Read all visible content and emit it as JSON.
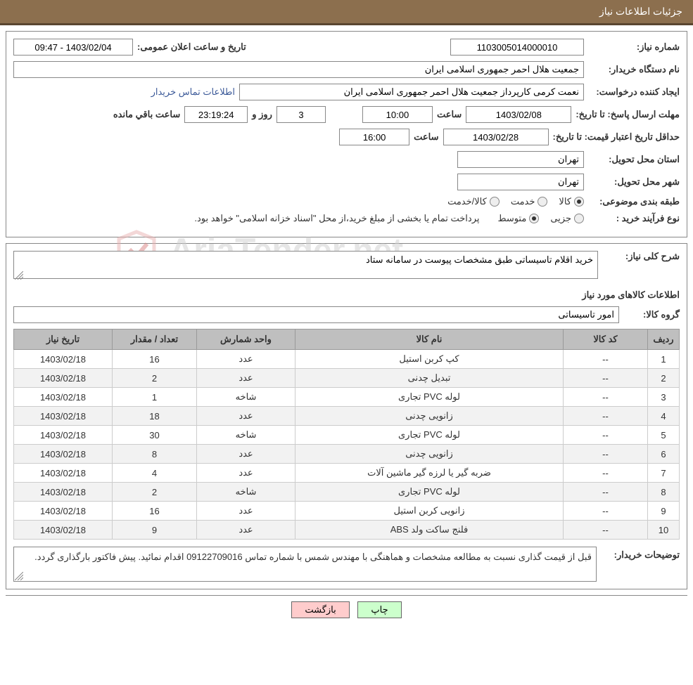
{
  "header": {
    "title": "جزئیات اطلاعات نیاز"
  },
  "fields": {
    "need_number_label": "شماره نیاز:",
    "need_number": "1103005014000010",
    "announce_datetime_label": "تاریخ و ساعت اعلان عمومی:",
    "announce_datetime": "1403/02/04 - 09:47",
    "buyer_org_label": "نام دستگاه خریدار:",
    "buyer_org": "جمعیت هلال احمر جمهوری اسلامی ایران",
    "requester_label": "ایجاد کننده درخواست:",
    "requester": "نعمت کرمی کارپرداز جمعیت هلال احمر جمهوری اسلامی ایران",
    "contact_link": "اطلاعات تماس خریدار",
    "deadline_label": "مهلت ارسال پاسخ:",
    "to_date_label": "تا تاریخ:",
    "deadline_date": "1403/02/08",
    "time_label": "ساعت",
    "deadline_time": "10:00",
    "days_value": "3",
    "days_and_label": "روز و",
    "countdown": "23:19:24",
    "remaining_label": "ساعت باقي مانده",
    "price_validity_label": "حداقل تاریخ اعتبار قیمت:",
    "price_validity_date": "1403/02/28",
    "price_validity_time": "16:00",
    "delivery_province_label": "استان محل تحویل:",
    "delivery_province": "تهران",
    "delivery_city_label": "شهر محل تحویل:",
    "delivery_city": "تهران",
    "category_label": "طبقه بندی موضوعی:",
    "cat_goods": "کالا",
    "cat_service": "خدمت",
    "cat_goods_service": "کالا/خدمت",
    "process_label": "نوع فرآیند خرید :",
    "proc_partial": "جزیی",
    "proc_medium": "متوسط",
    "process_note": "پرداخت تمام یا بخشی از مبلغ خرید،از محل \"اسناد خزانه اسلامی\" خواهد بود."
  },
  "desc": {
    "label": "شرح کلی نیاز:",
    "text": "خرید اقلام تاسیساتی طبق مشخصات پیوست در سامانه ستاد"
  },
  "goods": {
    "title": "اطلاعات کالاهای مورد نیاز",
    "group_label": "گروه کالا:",
    "group_value": "امور تاسیساتی",
    "columns": {
      "idx": "ردیف",
      "code": "کد کالا",
      "name": "نام کالا",
      "unit": "واحد شمارش",
      "qty": "تعداد / مقدار",
      "date": "تاریخ نیاز"
    },
    "rows": [
      {
        "idx": "1",
        "code": "--",
        "name": "کپ کربن استیل",
        "unit": "عدد",
        "qty": "16",
        "date": "1403/02/18"
      },
      {
        "idx": "2",
        "code": "--",
        "name": "تبدیل چدنی",
        "unit": "عدد",
        "qty": "2",
        "date": "1403/02/18"
      },
      {
        "idx": "3",
        "code": "--",
        "name": "لوله PVC تجاری",
        "unit": "شاخه",
        "qty": "1",
        "date": "1403/02/18"
      },
      {
        "idx": "4",
        "code": "--",
        "name": "زانویی چدنی",
        "unit": "عدد",
        "qty": "18",
        "date": "1403/02/18"
      },
      {
        "idx": "5",
        "code": "--",
        "name": "لوله PVC تجاری",
        "unit": "شاخه",
        "qty": "30",
        "date": "1403/02/18"
      },
      {
        "idx": "6",
        "code": "--",
        "name": "زانویی چدنی",
        "unit": "عدد",
        "qty": "8",
        "date": "1403/02/18"
      },
      {
        "idx": "7",
        "code": "--",
        "name": "ضربه گیر یا لرزه گیر ماشین آلات",
        "unit": "عدد",
        "qty": "4",
        "date": "1403/02/18"
      },
      {
        "idx": "8",
        "code": "--",
        "name": "لوله PVC تجاری",
        "unit": "شاخه",
        "qty": "2",
        "date": "1403/02/18"
      },
      {
        "idx": "9",
        "code": "--",
        "name": "زانویی کربن استیل",
        "unit": "عدد",
        "qty": "16",
        "date": "1403/02/18"
      },
      {
        "idx": "10",
        "code": "--",
        "name": "فلنج ساکت ولد ABS",
        "unit": "عدد",
        "qty": "9",
        "date": "1403/02/18"
      }
    ]
  },
  "buyer_notes": {
    "label": "توضیحات خریدار:",
    "text": "قبل از قیمت گذاری نسبت به مطالعه مشخصات و هماهنگی با مهندس شمس با شماره تماس 09122709016 اقدام نمائید. پیش فاکتور بارگذاری گردد."
  },
  "buttons": {
    "print": "چاپ",
    "back": "بازگشت"
  },
  "watermark": {
    "text": "AriaTender.net"
  }
}
